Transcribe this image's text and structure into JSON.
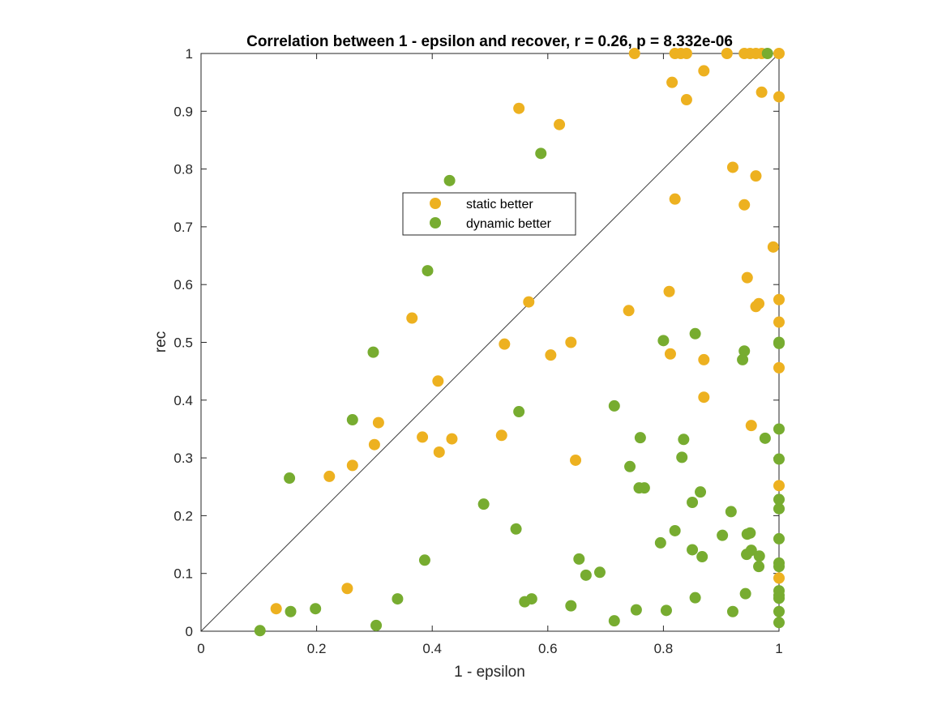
{
  "chart_data": {
    "type": "scatter",
    "title": "Correlation between 1 - epsilon and recover, r = 0.26, p = 8.332e-06",
    "xlabel": "1 - epsilon",
    "ylabel": "rec",
    "xlim": [
      0,
      1
    ],
    "ylim": [
      0,
      1
    ],
    "xticks": [
      "0",
      "0.2",
      "0.4",
      "0.6",
      "0.8",
      "1"
    ],
    "yticks": [
      "0",
      "0.1",
      "0.2",
      "0.3",
      "0.4",
      "0.5",
      "0.6",
      "0.7",
      "0.8",
      "0.9",
      "1"
    ],
    "grid": false,
    "box": true,
    "reference_line": {
      "from": [
        0,
        0
      ],
      "to": [
        1,
        1
      ],
      "color": "#404040"
    },
    "legend_placement": "upper-center",
    "series": [
      {
        "name": "static better",
        "color": "#EDB120",
        "points": [
          [
            0.75,
            1.0
          ],
          [
            0.82,
            1.0
          ],
          [
            0.83,
            1.0
          ],
          [
            0.84,
            1.0
          ],
          [
            0.91,
            1.0
          ],
          [
            0.94,
            1.0
          ],
          [
            0.95,
            1.0
          ],
          [
            0.96,
            1.0
          ],
          [
            0.97,
            1.0
          ],
          [
            1.0,
            1.0
          ],
          [
            0.815,
            0.95
          ],
          [
            0.87,
            0.97
          ],
          [
            0.84,
            0.92
          ],
          [
            0.97,
            0.933
          ],
          [
            1.0,
            0.925
          ],
          [
            0.55,
            0.905
          ],
          [
            0.62,
            0.877
          ],
          [
            0.92,
            0.803
          ],
          [
            0.96,
            0.788
          ],
          [
            0.82,
            0.748
          ],
          [
            0.94,
            0.738
          ],
          [
            0.99,
            0.665
          ],
          [
            0.945,
            0.612
          ],
          [
            0.81,
            0.588
          ],
          [
            1.0,
            0.574
          ],
          [
            0.567,
            0.57
          ],
          [
            0.965,
            0.567
          ],
          [
            0.96,
            0.562
          ],
          [
            0.74,
            0.555
          ],
          [
            0.365,
            0.542
          ],
          [
            1.0,
            0.535
          ],
          [
            0.525,
            0.497
          ],
          [
            0.64,
            0.5
          ],
          [
            0.605,
            0.478
          ],
          [
            0.812,
            0.48
          ],
          [
            0.87,
            0.47
          ],
          [
            1.0,
            0.456
          ],
          [
            0.41,
            0.433
          ],
          [
            0.87,
            0.405
          ],
          [
            0.307,
            0.361
          ],
          [
            0.952,
            0.356
          ],
          [
            0.383,
            0.336
          ],
          [
            0.52,
            0.339
          ],
          [
            0.434,
            0.333
          ],
          [
            0.3,
            0.323
          ],
          [
            0.412,
            0.31
          ],
          [
            0.648,
            0.296
          ],
          [
            0.262,
            0.287
          ],
          [
            0.222,
            0.268
          ],
          [
            1.0,
            0.252
          ],
          [
            0.253,
            0.074
          ],
          [
            1.0,
            0.092
          ],
          [
            0.13,
            0.039
          ]
        ]
      },
      {
        "name": "dynamic better",
        "color": "#77AC30",
        "points": [
          [
            0.98,
            1.0
          ],
          [
            0.588,
            0.827
          ],
          [
            0.43,
            0.78
          ],
          [
            0.392,
            0.624
          ],
          [
            0.855,
            0.515
          ],
          [
            0.8,
            0.503
          ],
          [
            1.0,
            0.5
          ],
          [
            1.0,
            0.498
          ],
          [
            0.94,
            0.485
          ],
          [
            0.298,
            0.483
          ],
          [
            0.937,
            0.47
          ],
          [
            0.715,
            0.39
          ],
          [
            0.55,
            0.38
          ],
          [
            0.262,
            0.366
          ],
          [
            1.0,
            0.35
          ],
          [
            0.76,
            0.335
          ],
          [
            0.976,
            0.334
          ],
          [
            0.835,
            0.332
          ],
          [
            0.832,
            0.301
          ],
          [
            1.0,
            0.298
          ],
          [
            0.742,
            0.285
          ],
          [
            0.153,
            0.265
          ],
          [
            0.758,
            0.248
          ],
          [
            0.767,
            0.248
          ],
          [
            0.864,
            0.241
          ],
          [
            1.0,
            0.228
          ],
          [
            0.85,
            0.223
          ],
          [
            0.489,
            0.22
          ],
          [
            1.0,
            0.212
          ],
          [
            0.917,
            0.207
          ],
          [
            0.545,
            0.177
          ],
          [
            0.82,
            0.174
          ],
          [
            0.95,
            0.17
          ],
          [
            0.945,
            0.168
          ],
          [
            0.902,
            0.166
          ],
          [
            1.0,
            0.16
          ],
          [
            0.795,
            0.153
          ],
          [
            0.85,
            0.141
          ],
          [
            0.952,
            0.14
          ],
          [
            0.944,
            0.133
          ],
          [
            0.966,
            0.13
          ],
          [
            0.867,
            0.129
          ],
          [
            0.654,
            0.125
          ],
          [
            0.387,
            0.123
          ],
          [
            1.0,
            0.118
          ],
          [
            1.0,
            0.112
          ],
          [
            0.965,
            0.112
          ],
          [
            0.69,
            0.102
          ],
          [
            0.666,
            0.097
          ],
          [
            1.0,
            0.07
          ],
          [
            0.942,
            0.065
          ],
          [
            1.0,
            0.062
          ],
          [
            0.855,
            0.058
          ],
          [
            1.0,
            0.057
          ],
          [
            0.34,
            0.056
          ],
          [
            0.572,
            0.056
          ],
          [
            0.56,
            0.051
          ],
          [
            0.64,
            0.044
          ],
          [
            0.198,
            0.039
          ],
          [
            0.753,
            0.037
          ],
          [
            0.805,
            0.036
          ],
          [
            0.155,
            0.034
          ],
          [
            0.92,
            0.034
          ],
          [
            1.0,
            0.034
          ],
          [
            0.715,
            0.018
          ],
          [
            1.0,
            0.015
          ],
          [
            0.303,
            0.01
          ],
          [
            0.102,
            0.001
          ]
        ]
      }
    ]
  }
}
